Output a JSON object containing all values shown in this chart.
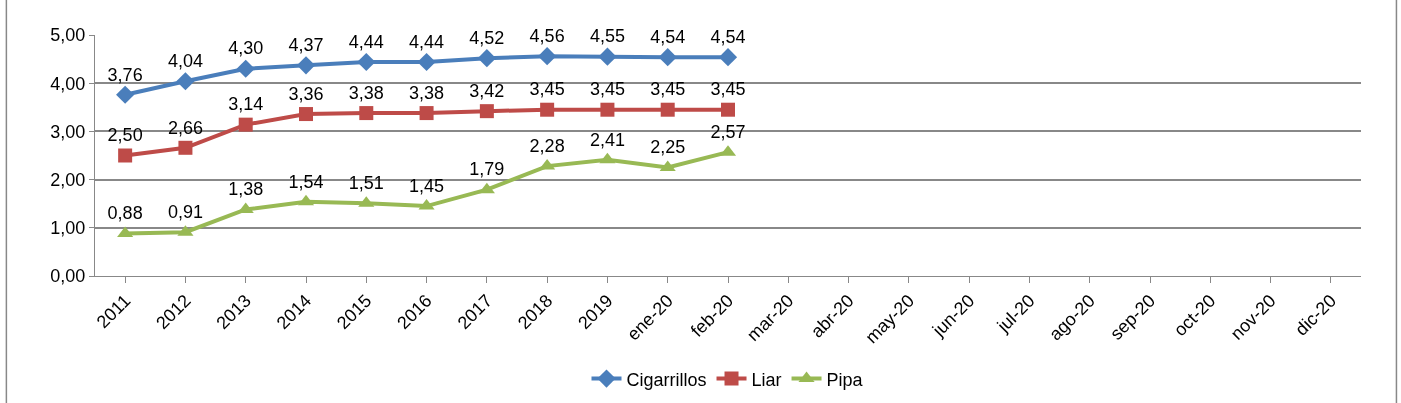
{
  "chart_data": {
    "type": "line",
    "categories": [
      "2011",
      "2012",
      "2013",
      "2014",
      "2015",
      "2016",
      "2017",
      "2018",
      "2019",
      "ene-20",
      "feb-20",
      "mar-20",
      "abr-20",
      "may-20",
      "jun-20",
      "jul-20",
      "ago-20",
      "sep-20",
      "oct-20",
      "nov-20",
      "dic-20"
    ],
    "series": [
      {
        "name": "Cigarrillos",
        "color": "#4a7ebb",
        "marker": "diamond",
        "values": [
          3.76,
          4.04,
          4.3,
          4.37,
          4.44,
          4.44,
          4.52,
          4.56,
          4.55,
          4.54,
          4.54,
          null,
          null,
          null,
          null,
          null,
          null,
          null,
          null,
          null,
          null
        ],
        "value_labels": [
          "3,76",
          "4,04",
          "4,30",
          "4,37",
          "4,44",
          "4,44",
          "4,52",
          "4,56",
          "4,55",
          "4,54",
          "4,54",
          null,
          null,
          null,
          null,
          null,
          null,
          null,
          null,
          null,
          null
        ]
      },
      {
        "name": "Liar",
        "color": "#be4b48",
        "marker": "square",
        "values": [
          2.5,
          2.66,
          3.14,
          3.36,
          3.38,
          3.38,
          3.42,
          3.45,
          3.45,
          3.45,
          3.45,
          null,
          null,
          null,
          null,
          null,
          null,
          null,
          null,
          null,
          null
        ],
        "value_labels": [
          "2,50",
          "2,66",
          "3,14",
          "3,36",
          "3,38",
          "3,38",
          "3,42",
          "3,45",
          "3,45",
          "3,45",
          "3,45",
          null,
          null,
          null,
          null,
          null,
          null,
          null,
          null,
          null,
          null
        ]
      },
      {
        "name": "Pipa",
        "color": "#98b954",
        "marker": "triangle",
        "values": [
          0.88,
          0.91,
          1.38,
          1.54,
          1.51,
          1.45,
          1.79,
          2.28,
          2.41,
          2.25,
          2.57,
          null,
          null,
          null,
          null,
          null,
          null,
          null,
          null,
          null,
          null
        ],
        "value_labels": [
          "0,88",
          "0,91",
          "1,38",
          "1,54",
          "1,51",
          "1,45",
          "1,79",
          "2,28",
          "2,41",
          "2,25",
          "2,57",
          null,
          null,
          null,
          null,
          null,
          null,
          null,
          null,
          null,
          null
        ]
      }
    ],
    "ylim": [
      0,
      5
    ],
    "yticks": [
      {
        "value": 0,
        "label": "0,00"
      },
      {
        "value": 1,
        "label": "1,00"
      },
      {
        "value": 2,
        "label": "2,00"
      },
      {
        "value": 3,
        "label": "3,00"
      },
      {
        "value": 4,
        "label": "4,00"
      },
      {
        "value": 5,
        "label": "5,00"
      }
    ],
    "grid": "y",
    "legend": "bottom",
    "line_style": "solid"
  }
}
